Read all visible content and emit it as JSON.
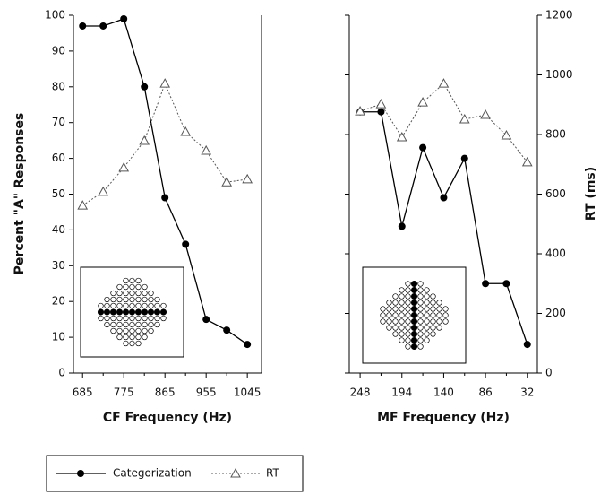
{
  "chart_data": [
    {
      "type": "line",
      "xlabel": "CF Frequency (Hz)",
      "ylabel": "Percent \"A\" Responses",
      "x": [
        685,
        730,
        775,
        820,
        865,
        910,
        955,
        1000,
        1045
      ],
      "xlim": [
        665,
        1076
      ],
      "xticks": [
        685,
        775,
        865,
        955,
        1045
      ],
      "ylim": [
        0,
        100
      ],
      "yticks": [
        0,
        10,
        20,
        30,
        40,
        50,
        60,
        70,
        80,
        90,
        100
      ],
      "y2lim": [
        0,
        1200
      ],
      "series": [
        {
          "name": "Categorization",
          "color": "#000000",
          "values": [
            97,
            97,
            99,
            80,
            49,
            36,
            15,
            12,
            8
          ]
        },
        {
          "name": "RT",
          "color": "#555555",
          "axis": "y2",
          "values": [
            562,
            608,
            689,
            779,
            971,
            809,
            746,
            640,
            650
          ]
        }
      ]
    },
    {
      "type": "line",
      "xlabel": "MF Frequency (Hz)",
      "y2label": "RT (ms)",
      "x": [
        248,
        221,
        194,
        167,
        140,
        113,
        86,
        59,
        32
      ],
      "xlim": [
        262,
        19
      ],
      "xticks": [
        248,
        194,
        140,
        86,
        32
      ],
      "ylim": [
        0,
        100
      ],
      "y2lim": [
        0,
        1200
      ],
      "y2ticks": [
        0,
        200,
        400,
        600,
        800,
        1000,
        1200
      ],
      "series": [
        {
          "name": "Categorization",
          "color": "#000000",
          "values": [
            73,
            73,
            41,
            63,
            49,
            60,
            25,
            25,
            8
          ]
        },
        {
          "name": "RT",
          "color": "#555555",
          "axis": "y2",
          "values": [
            878,
            902,
            791,
            908,
            971,
            851,
            866,
            797,
            707
          ]
        }
      ]
    }
  ]
}
